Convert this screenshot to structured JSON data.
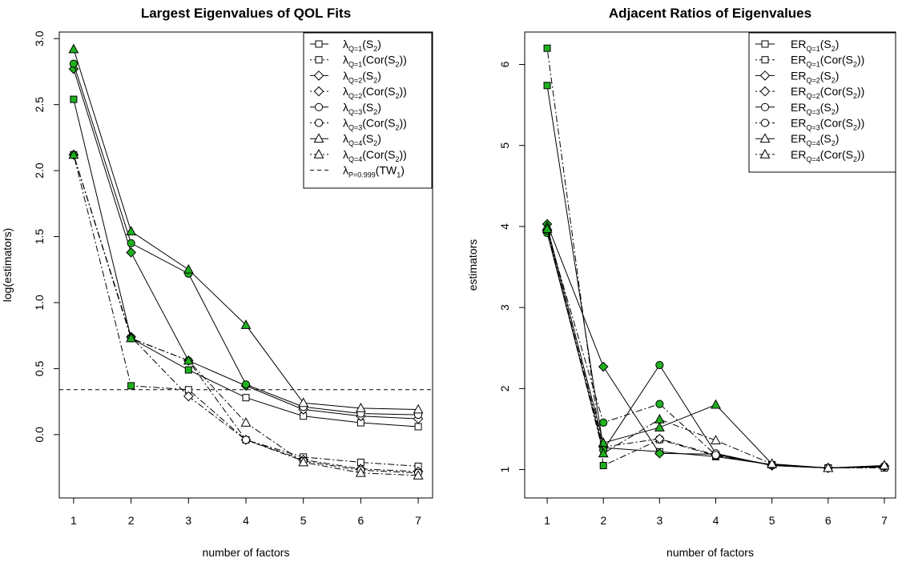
{
  "chart_data": [
    {
      "type": "line",
      "title": "Largest Eigenvalues of QOL Fits",
      "xlabel": "number of factors",
      "ylabel": "log(estimators)",
      "xlim": [
        0.75,
        7.25
      ],
      "ylim": [
        -0.48,
        3.05
      ],
      "xticks": [
        "1",
        "2",
        "3",
        "4",
        "5",
        "6",
        "7"
      ],
      "yticks": [
        "0.0",
        "0.5",
        "1.0",
        "1.5",
        "2.0",
        "2.5",
        "3.0"
      ],
      "x": [
        1,
        2,
        3,
        4,
        5,
        6,
        7
      ],
      "legend_position": "top-right",
      "series": [
        {
          "name": "λQ=1(S2)",
          "label_main": "λ",
          "label_sub": "Q=1",
          "label_rest": "(S",
          "label_sub2": "2",
          "label_end": ")",
          "marker": "square",
          "line": "solid",
          "values": [
            2.54,
            0.73,
            0.49,
            0.28,
            0.14,
            0.09,
            0.06
          ],
          "green_points": [
            1,
            3
          ]
        },
        {
          "name": "λQ=1(Cor(S2))",
          "label_main": "λ",
          "label_sub": "Q=1",
          "label_rest": "(Cor(S",
          "label_sub2": "2",
          "label_end": "))",
          "marker": "square",
          "line": "dotdash",
          "values": [
            2.12,
            0.37,
            0.34,
            -0.04,
            -0.17,
            -0.21,
            -0.24
          ],
          "green_points": [
            1,
            2
          ]
        },
        {
          "name": "λQ=2(S2)",
          "label_main": "λ",
          "label_sub": "Q=2",
          "label_rest": "(S",
          "label_sub2": "2",
          "label_end": ")",
          "marker": "diamond",
          "line": "solid",
          "values": [
            2.77,
            1.38,
            0.56,
            0.37,
            0.19,
            0.14,
            0.12
          ],
          "green_points": [
            1,
            2,
            3,
            4
          ]
        },
        {
          "name": "λQ=2(Cor(S2))",
          "label_main": "λ",
          "label_sub": "Q=2",
          "label_rest": "(Cor(S",
          "label_sub2": "2",
          "label_end": "))",
          "marker": "diamond",
          "line": "dotdash",
          "values": [
            2.12,
            0.74,
            0.29,
            -0.04,
            -0.19,
            -0.26,
            -0.28
          ],
          "green_points": [
            1,
            2
          ]
        },
        {
          "name": "λQ=3(S2)",
          "label_main": "λ",
          "label_sub": "Q=3",
          "label_rest": "(S",
          "label_sub2": "2",
          "label_end": ")",
          "marker": "circle",
          "line": "solid",
          "values": [
            2.81,
            1.45,
            1.22,
            0.38,
            0.21,
            0.16,
            0.15
          ],
          "green_points": [
            1,
            2,
            3,
            4
          ]
        },
        {
          "name": "λQ=3(Cor(S2))",
          "label_main": "λ",
          "label_sub": "Q=3",
          "label_rest": "(Cor(S",
          "label_sub2": "2",
          "label_end": "))",
          "marker": "circle",
          "line": "dotdash",
          "values": [
            2.12,
            0.73,
            0.56,
            -0.04,
            -0.2,
            -0.27,
            -0.29
          ],
          "green_points": [
            1,
            2,
            3
          ]
        },
        {
          "name": "λQ=4(S2)",
          "label_main": "λ",
          "label_sub": "Q=4",
          "label_rest": "(S",
          "label_sub2": "2",
          "label_end": ")",
          "marker": "triangle",
          "line": "solid",
          "values": [
            2.92,
            1.54,
            1.25,
            0.83,
            0.24,
            0.2,
            0.19
          ],
          "green_points": [
            1,
            2,
            3,
            4
          ]
        },
        {
          "name": "λQ=4(Cor(S2))",
          "label_main": "λ",
          "label_sub": "Q=4",
          "label_rest": "(Cor(S",
          "label_sub2": "2",
          "label_end": "))",
          "marker": "triangle",
          "line": "dotdash",
          "values": [
            2.12,
            0.73,
            0.56,
            0.09,
            -0.21,
            -0.29,
            -0.31
          ],
          "green_points": [
            1,
            2,
            3
          ]
        }
      ],
      "reference_line": {
        "name": "λP=0.999(TW1)",
        "label_main": "λ",
        "label_sub": "P=0.999",
        "label_rest": "(TW",
        "label_sub2": "1",
        "label_end": ")",
        "value": 0.34,
        "line": "dashed"
      }
    },
    {
      "type": "line",
      "title": "Adjacent Ratios of Eigenvalues",
      "xlabel": "number of factors",
      "ylabel": "estimators",
      "xlim": [
        0.6,
        7.2
      ],
      "ylim": [
        0.65,
        6.4
      ],
      "xticks": [
        "1",
        "2",
        "3",
        "4",
        "5",
        "6",
        "7"
      ],
      "yticks": [
        "1",
        "2",
        "3",
        "4",
        "5",
        "6"
      ],
      "x": [
        1,
        2,
        3,
        4,
        5,
        6,
        7
      ],
      "legend_position": "top-right",
      "series": [
        {
          "name": "ERQ=1(S2)",
          "label_main": "ER",
          "label_sub": "Q=1",
          "label_rest": "(S",
          "label_sub2": "2",
          "label_end": ")",
          "marker": "square",
          "line": "solid",
          "values": [
            5.74,
            1.27,
            1.22,
            1.16,
            1.06,
            1.02,
            1.03
          ],
          "green_points": [
            1,
            2
          ]
        },
        {
          "name": "ERQ=1(Cor(S2))",
          "label_main": "ER",
          "label_sub": "Q=1",
          "label_rest": "(Cor(S",
          "label_sub2": "2",
          "label_end": "))",
          "marker": "square",
          "line": "dotdash",
          "values": [
            6.2,
            1.05,
            1.37,
            1.17,
            1.06,
            1.02,
            1.02
          ],
          "green_points": [
            1,
            2
          ]
        },
        {
          "name": "ERQ=2(S2)",
          "label_main": "ER",
          "label_sub": "Q=2",
          "label_rest": "(S",
          "label_sub2": "2",
          "label_end": ")",
          "marker": "diamond",
          "line": "solid",
          "values": [
            4.03,
            2.27,
            1.2,
            1.19,
            1.05,
            1.02,
            1.04
          ],
          "green_points": [
            1,
            2,
            3
          ]
        },
        {
          "name": "ERQ=2(Cor(S2))",
          "label_main": "ER",
          "label_sub": "Q=2",
          "label_rest": "(Cor(S",
          "label_sub2": "2",
          "label_end": "))",
          "marker": "diamond",
          "line": "dotdash",
          "values": [
            3.95,
            1.28,
            1.38,
            1.18,
            1.06,
            1.02,
            1.04
          ],
          "green_points": [
            1,
            2
          ]
        },
        {
          "name": "ERQ=3(S2)",
          "label_main": "ER",
          "label_sub": "Q=3",
          "label_rest": "(S",
          "label_sub2": "2",
          "label_end": ")",
          "marker": "circle",
          "line": "solid",
          "values": [
            3.92,
            1.24,
            2.29,
            1.2,
            1.05,
            1.02,
            1.04
          ],
          "green_points": [
            1,
            2,
            3
          ]
        },
        {
          "name": "ERQ=3(Cor(S2))",
          "label_main": "ER",
          "label_sub": "Q=3",
          "label_rest": "(Cor(S",
          "label_sub2": "2",
          "label_end": "))",
          "marker": "circle",
          "line": "dotdash",
          "values": [
            3.95,
            1.58,
            1.81,
            1.18,
            1.06,
            1.02,
            1.04
          ],
          "green_points": [
            1,
            2,
            3
          ]
        },
        {
          "name": "ERQ=4(S2)",
          "label_main": "ER",
          "label_sub": "Q=4",
          "label_rest": "(S",
          "label_sub2": "2",
          "label_end": ")",
          "marker": "triangle",
          "line": "solid",
          "values": [
            4.0,
            1.33,
            1.52,
            1.8,
            1.07,
            1.02,
            1.05
          ],
          "green_points": [
            1,
            2,
            3,
            4
          ]
        },
        {
          "name": "ERQ=4(Cor(S2))",
          "label_main": "ER",
          "label_sub": "Q=4",
          "label_rest": "(Cor(S",
          "label_sub2": "2",
          "label_end": "))",
          "marker": "triangle",
          "line": "dotdash",
          "values": [
            3.97,
            1.2,
            1.62,
            1.36,
            1.07,
            1.02,
            1.05
          ],
          "green_points": [
            1,
            2,
            3
          ]
        }
      ]
    }
  ],
  "colors": {
    "marker_fill_green": "#20b020",
    "line": "#000000",
    "background": "#ffffff"
  }
}
